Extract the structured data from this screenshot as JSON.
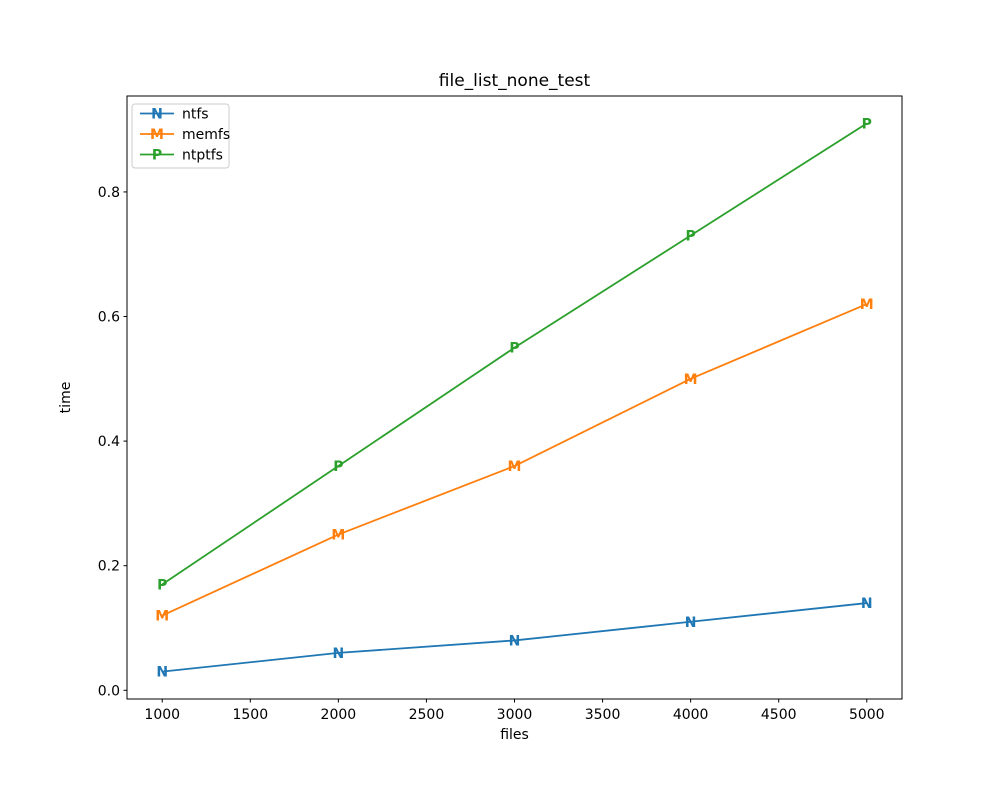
{
  "chart_data": {
    "type": "line",
    "title": "file_list_none_test",
    "xlabel": "files",
    "ylabel": "time",
    "x": [
      1000,
      2000,
      3000,
      4000,
      5000
    ],
    "series": [
      {
        "name": "ntfs",
        "marker": "N",
        "color": "#1f77b4",
        "values": [
          0.03,
          0.06,
          0.08,
          0.11,
          0.14
        ]
      },
      {
        "name": "memfs",
        "marker": "M",
        "color": "#ff7f0e",
        "values": [
          0.12,
          0.25,
          0.36,
          0.5,
          0.62
        ]
      },
      {
        "name": "ntptfs",
        "marker": "P",
        "color": "#2ca02c",
        "values": [
          0.17,
          0.36,
          0.55,
          0.73,
          0.91
        ]
      }
    ],
    "xtick_values": [
      1000,
      1500,
      2000,
      2500,
      3000,
      3500,
      4000,
      4500,
      5000
    ],
    "xtick_labels": [
      "1000",
      "1500",
      "2000",
      "2500",
      "3000",
      "3500",
      "4000",
      "4500",
      "5000"
    ],
    "ytick_values": [
      0.0,
      0.2,
      0.4,
      0.6,
      0.8
    ],
    "ytick_labels": [
      "0.0",
      "0.2",
      "0.4",
      "0.6",
      "0.8"
    ],
    "xlim": [
      800,
      5200
    ],
    "ylim": [
      -0.014,
      0.954
    ],
    "grid": false,
    "legend_position": "upper left",
    "axis_color": "#000000",
    "legend_border_color": "#cccccc",
    "background_color": "#ffffff"
  }
}
